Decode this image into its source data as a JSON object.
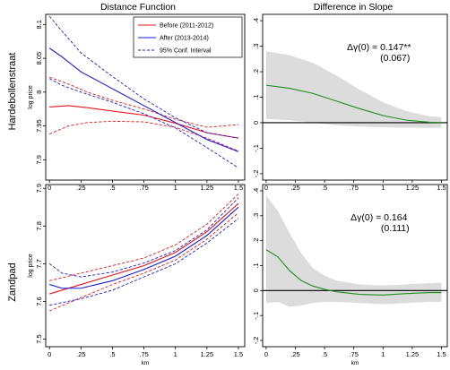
{
  "figure": {
    "col_titles": [
      "Distance Function",
      "Difference in Slope"
    ],
    "row_labels": [
      "Hardebollenstraat",
      "Zandpad"
    ]
  },
  "colors": {
    "before": "#e8141a",
    "after": "#1a1adf",
    "ci": "#1a1adf",
    "slope": "#1f8c1f",
    "band": "#dcdcdc",
    "zero": "#000000"
  },
  "chart_data": [
    {
      "type": "line",
      "row": 0,
      "col": 0,
      "xlabel": "",
      "ylabel": "log price",
      "xlim": [
        -0.03,
        1.55
      ],
      "ylim": [
        7.87,
        8.115
      ],
      "xticks": [
        0,
        0.25,
        0.5,
        0.75,
        1,
        1.25,
        1.5
      ],
      "xticklabels": [
        "0",
        ".25",
        ".5",
        ".75",
        "1",
        "1.25",
        "1.5"
      ],
      "yticks": [
        7.9,
        7.95,
        8,
        8.05,
        8.1
      ],
      "yticklabels": [
        "7.9",
        "7.95",
        "8",
        "8.05",
        "8.1"
      ],
      "legend": {
        "placement": "top-right",
        "entries": [
          "Before (2011-2012)",
          "After (2013-2014)",
          "95% Conf. Interval"
        ]
      },
      "series": [
        {
          "name": "Before (2011-2012)",
          "style": "solid",
          "color": "#e8141a",
          "x": [
            0,
            0.15,
            0.3,
            0.5,
            0.75,
            1.0,
            1.25,
            1.5
          ],
          "y": [
            7.978,
            7.98,
            7.977,
            7.972,
            7.966,
            7.954,
            7.94,
            7.932
          ]
        },
        {
          "style": "dashed",
          "color": "#e8141a",
          "x": [
            0,
            0.15,
            0.3,
            0.5,
            0.75,
            1.0,
            1.25,
            1.5
          ],
          "y": [
            8.022,
            8.012,
            8.0,
            7.988,
            7.975,
            7.96,
            7.948,
            7.952
          ]
        },
        {
          "style": "dashed",
          "color": "#e8141a",
          "x": [
            0,
            0.15,
            0.3,
            0.5,
            0.75,
            1.0,
            1.25,
            1.5
          ],
          "y": [
            7.938,
            7.95,
            7.955,
            7.957,
            7.956,
            7.948,
            7.932,
            7.913
          ]
        },
        {
          "name": "After (2013-2014)",
          "style": "solid",
          "color": "#1a1adf",
          "x": [
            0,
            0.1,
            0.25,
            0.5,
            0.75,
            1.0,
            1.25,
            1.5
          ],
          "y": [
            8.065,
            8.052,
            8.03,
            8.005,
            7.98,
            7.955,
            7.93,
            7.912
          ]
        },
        {
          "name": "95% Conf. Interval",
          "style": "dashed",
          "color": "#1a1adf",
          "x": [
            0,
            0.1,
            0.25,
            0.5,
            0.75,
            1.0,
            1.25,
            1.5
          ],
          "y": [
            8.112,
            8.09,
            8.058,
            8.023,
            7.99,
            7.962,
            7.94,
            7.932
          ]
        },
        {
          "style": "dashed",
          "color": "#1a1adf",
          "x": [
            0,
            0.1,
            0.25,
            0.5,
            0.75,
            1.0,
            1.25,
            1.5
          ],
          "y": [
            8.02,
            8.01,
            8.0,
            7.985,
            7.968,
            7.947,
            7.918,
            7.888
          ]
        }
      ]
    },
    {
      "type": "area",
      "row": 0,
      "col": 1,
      "xlabel": "",
      "ylabel": "",
      "xlim": [
        -0.03,
        1.55
      ],
      "ylim": [
        -0.225,
        0.425
      ],
      "xticks": [
        0,
        0.25,
        0.5,
        0.75,
        1,
        1.25,
        1.5
      ],
      "xticklabels": [
        "0",
        ".25",
        ".5",
        ".75",
        "1",
        "1.25",
        "1.5"
      ],
      "yticks": [
        -0.2,
        -0.1,
        0,
        0.1,
        0.2,
        0.3,
        0.4
      ],
      "yticklabels": [
        "-.2",
        "-.1",
        "0",
        ".1",
        ".2",
        ".3",
        ".4"
      ],
      "annotation": {
        "label": "Δγ(0) = 0.147**",
        "se": "(0.067)"
      },
      "series": [
        {
          "style": "solid",
          "color": "#1f8c1f",
          "x": [
            0,
            0.2,
            0.4,
            0.6,
            0.8,
            1.0,
            1.2,
            1.4,
            1.5
          ],
          "y": [
            0.147,
            0.135,
            0.115,
            0.085,
            0.055,
            0.028,
            0.01,
            0.002,
            0.001
          ]
        }
      ],
      "band": {
        "x": [
          0,
          0.2,
          0.4,
          0.6,
          0.8,
          1.0,
          1.2,
          1.4,
          1.5
        ],
        "upper": [
          0.28,
          0.265,
          0.235,
          0.185,
          0.13,
          0.08,
          0.045,
          0.025,
          0.022
        ],
        "lower": [
          0.015,
          0.01,
          0.0,
          -0.01,
          -0.015,
          -0.018,
          -0.02,
          -0.02,
          -0.02
        ]
      }
    },
    {
      "type": "line",
      "row": 1,
      "col": 0,
      "xlabel": "km",
      "ylabel": "log price",
      "xlim": [
        -0.03,
        1.55
      ],
      "ylim": [
        7.48,
        7.91
      ],
      "xticks": [
        0,
        0.25,
        0.5,
        0.75,
        1,
        1.25,
        1.5
      ],
      "xticklabels": [
        "0",
        ".25",
        ".5",
        ".75",
        "1",
        "1.25",
        "1.5"
      ],
      "yticks": [
        7.5,
        7.6,
        7.7,
        7.8,
        7.9
      ],
      "yticklabels": [
        "7.5",
        "7.6",
        "7.7",
        "7.8",
        "7.9"
      ],
      "series": [
        {
          "style": "solid",
          "color": "#e8141a",
          "x": [
            0,
            0.25,
            0.5,
            0.75,
            1.0,
            1.25,
            1.5
          ],
          "y": [
            7.62,
            7.645,
            7.67,
            7.695,
            7.73,
            7.785,
            7.86
          ]
        },
        {
          "style": "dashed",
          "color": "#e8141a",
          "x": [
            0,
            0.25,
            0.5,
            0.75,
            1.0,
            1.25,
            1.5
          ],
          "y": [
            7.655,
            7.675,
            7.695,
            7.715,
            7.75,
            7.805,
            7.885
          ]
        },
        {
          "style": "dashed",
          "color": "#e8141a",
          "x": [
            0,
            0.25,
            0.5,
            0.75,
            1.0,
            1.25,
            1.5
          ],
          "y": [
            7.575,
            7.61,
            7.645,
            7.675,
            7.71,
            7.765,
            7.835
          ]
        },
        {
          "style": "solid",
          "color": "#1a1adf",
          "x": [
            0,
            0.1,
            0.25,
            0.5,
            0.75,
            1.0,
            1.25,
            1.5
          ],
          "y": [
            7.645,
            7.635,
            7.635,
            7.655,
            7.685,
            7.72,
            7.775,
            7.85
          ]
        },
        {
          "style": "dashed",
          "color": "#1a1adf",
          "x": [
            0,
            0.1,
            0.25,
            0.5,
            0.75,
            1.0,
            1.25,
            1.5
          ],
          "y": [
            7.7,
            7.675,
            7.665,
            7.678,
            7.702,
            7.735,
            7.79,
            7.875
          ]
        },
        {
          "style": "dashed",
          "color": "#1a1adf",
          "x": [
            0,
            0.1,
            0.25,
            0.5,
            0.75,
            1.0,
            1.25,
            1.5
          ],
          "y": [
            7.59,
            7.597,
            7.607,
            7.63,
            7.665,
            7.7,
            7.755,
            7.82
          ]
        }
      ]
    },
    {
      "type": "area",
      "row": 1,
      "col": 1,
      "xlabel": "km",
      "ylabel": "",
      "xlim": [
        -0.03,
        1.55
      ],
      "ylim": [
        -0.225,
        0.425
      ],
      "xticks": [
        0,
        0.25,
        0.5,
        0.75,
        1,
        1.25,
        1.5
      ],
      "xticklabels": [
        "0",
        ".25",
        ".5",
        ".75",
        "1",
        "1.25",
        "1.5"
      ],
      "yticks": [
        -0.2,
        -0.1,
        0,
        0.1,
        0.2,
        0.3,
        0.4
      ],
      "yticklabels": [
        "-.2",
        "-.1",
        "0",
        ".1",
        ".2",
        ".3",
        ".4"
      ],
      "annotation": {
        "label": "Δγ(0) = 0.164",
        "se": "(0.111)"
      },
      "series": [
        {
          "style": "solid",
          "color": "#1f8c1f",
          "x": [
            0,
            0.1,
            0.2,
            0.3,
            0.4,
            0.5,
            0.6,
            0.8,
            1.0,
            1.2,
            1.4,
            1.5
          ],
          "y": [
            0.164,
            0.135,
            0.08,
            0.04,
            0.018,
            0.005,
            -0.005,
            -0.015,
            -0.018,
            -0.012,
            -0.008,
            -0.008
          ]
        }
      ],
      "band": {
        "x": [
          0,
          0.1,
          0.2,
          0.3,
          0.4,
          0.5,
          0.6,
          0.8,
          1.0,
          1.2,
          1.4,
          1.5
        ],
        "upper": [
          0.38,
          0.32,
          0.23,
          0.15,
          0.09,
          0.06,
          0.04,
          0.025,
          0.02,
          0.025,
          0.03,
          0.032
        ],
        "lower": [
          -0.05,
          -0.045,
          -0.065,
          -0.06,
          -0.05,
          -0.045,
          -0.045,
          -0.05,
          -0.055,
          -0.05,
          -0.045,
          -0.045
        ]
      }
    }
  ]
}
